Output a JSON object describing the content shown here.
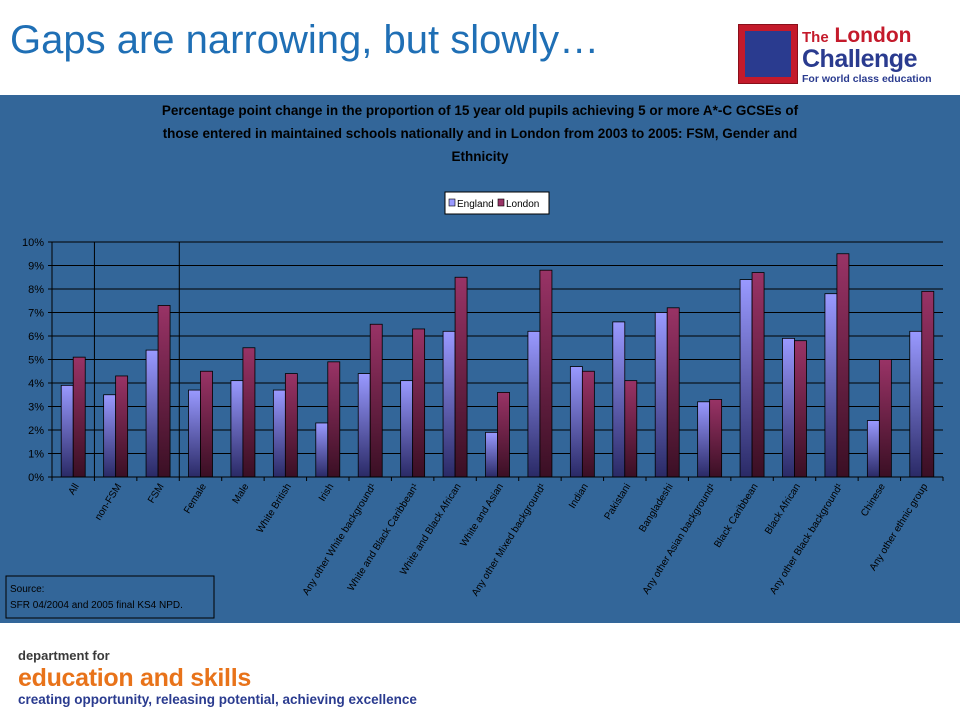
{
  "slide": {
    "title": "Gaps are narrowing, but slowly…"
  },
  "logo": {
    "the": "The",
    "london": "London",
    "challenge": "Challenge",
    "tagline": "For world class education"
  },
  "footer": {
    "line1": "department for",
    "line2": "education and skills",
    "line3": "creating opportunity, releasing potential, achieving excellence"
  },
  "colors": {
    "panel": "#336699",
    "england": "#9999ff",
    "london": "#993366",
    "title": "#1f6fb5"
  },
  "chart_data": {
    "type": "bar",
    "title": "Percentage point change in the proportion of 15 year old pupils achieving 5 or more A*-C GCSEs of those entered in maintained schools nationally and in London from 2003 to 2005: FSM, Gender and Ethnicity",
    "title_lines": [
      "Percentage point change in the proportion of 15 year old pupils achieving 5 or more A*-C GCSEs of",
      "those entered in maintained schools nationally and in London from 2003 to 2005: FSM, Gender and",
      "Ethnicity"
    ],
    "categories": [
      "All",
      "non-FSM",
      "FSM",
      "Female",
      "Male",
      "White British",
      "Irish",
      "Any other White background¹",
      "White and Black Caribbean¹",
      "White and Black African",
      "White and Asian",
      "Any other Mixed background¹",
      "Indian",
      "Pakistani",
      "Bangladeshi",
      "Any other Asian background¹",
      "Black Caribbean",
      "Black African",
      "Any other Black background¹",
      "Chinese",
      "Any other ethnic group"
    ],
    "series": [
      {
        "name": "England",
        "color": "#9999ff",
        "values": [
          3.9,
          3.5,
          5.4,
          3.7,
          4.1,
          3.7,
          2.3,
          4.4,
          4.1,
          6.2,
          1.9,
          6.2,
          4.7,
          6.6,
          7.0,
          3.2,
          8.4,
          5.9,
          7.8,
          2.4,
          6.2
        ]
      },
      {
        "name": "London",
        "color": "#993366",
        "values": [
          5.1,
          4.3,
          7.3,
          4.5,
          5.5,
          4.4,
          4.9,
          6.5,
          6.3,
          8.5,
          3.6,
          8.8,
          4.5,
          4.1,
          7.2,
          3.3,
          8.7,
          5.8,
          9.5,
          5.0,
          7.9
        ]
      }
    ],
    "y_ticks": [
      "0%",
      "1%",
      "2%",
      "3%",
      "4%",
      "5%",
      "6%",
      "7%",
      "8%",
      "9%",
      "10%"
    ],
    "ylim": [
      0,
      10
    ],
    "grid": true,
    "legend_position": "top-center",
    "source_lines": [
      "Source:",
      "SFR 04/2004 and 2005 final KS4 NPD."
    ]
  }
}
